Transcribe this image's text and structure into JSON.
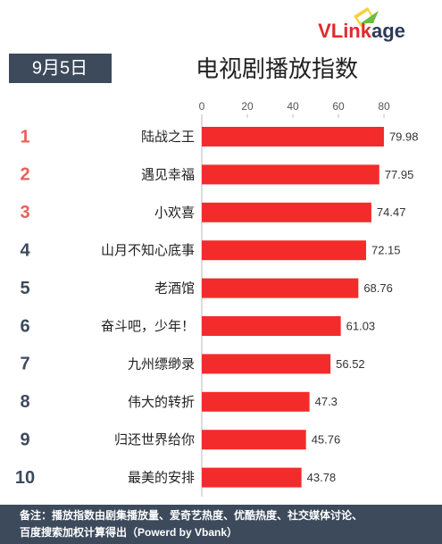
{
  "chart_data": {
    "type": "hbar",
    "title": "电视剧播放指数",
    "date": "9月5日",
    "logo": [
      "VLink",
      "age"
    ],
    "ranks": [
      1,
      2,
      3,
      4,
      5,
      6,
      7,
      8,
      9,
      10
    ],
    "rank_colors": [
      "#e8605a",
      "#e8605a",
      "#e8605a",
      "#3d4a5c",
      "#3d4a5c",
      "#3d4a5c",
      "#3d4a5c",
      "#3d4a5c",
      "#3d4a5c",
      "#3d4a5c"
    ],
    "categories": [
      "陆战之王",
      "遇见幸福",
      "小欢喜",
      "山月不知心底事",
      "老酒馆",
      "奋斗吧，少年！",
      "九州缥缈录",
      "伟大的转折",
      "归还世界给你",
      "最美的安排"
    ],
    "values": [
      79.98,
      77.95,
      74.47,
      72.15,
      68.76,
      61.03,
      56.52,
      47.3,
      45.76,
      43.78
    ],
    "color": "#f42b2b",
    "xlim": [
      0,
      100
    ],
    "xticks": [
      0,
      20,
      40,
      60,
      80
    ],
    "note": [
      "备注：播放指数由剧集播放量、爱奇艺热度、优酷热度、社交媒体讨论、",
      "百度搜索加权计算得出（Powerd by Vbank）"
    ]
  }
}
